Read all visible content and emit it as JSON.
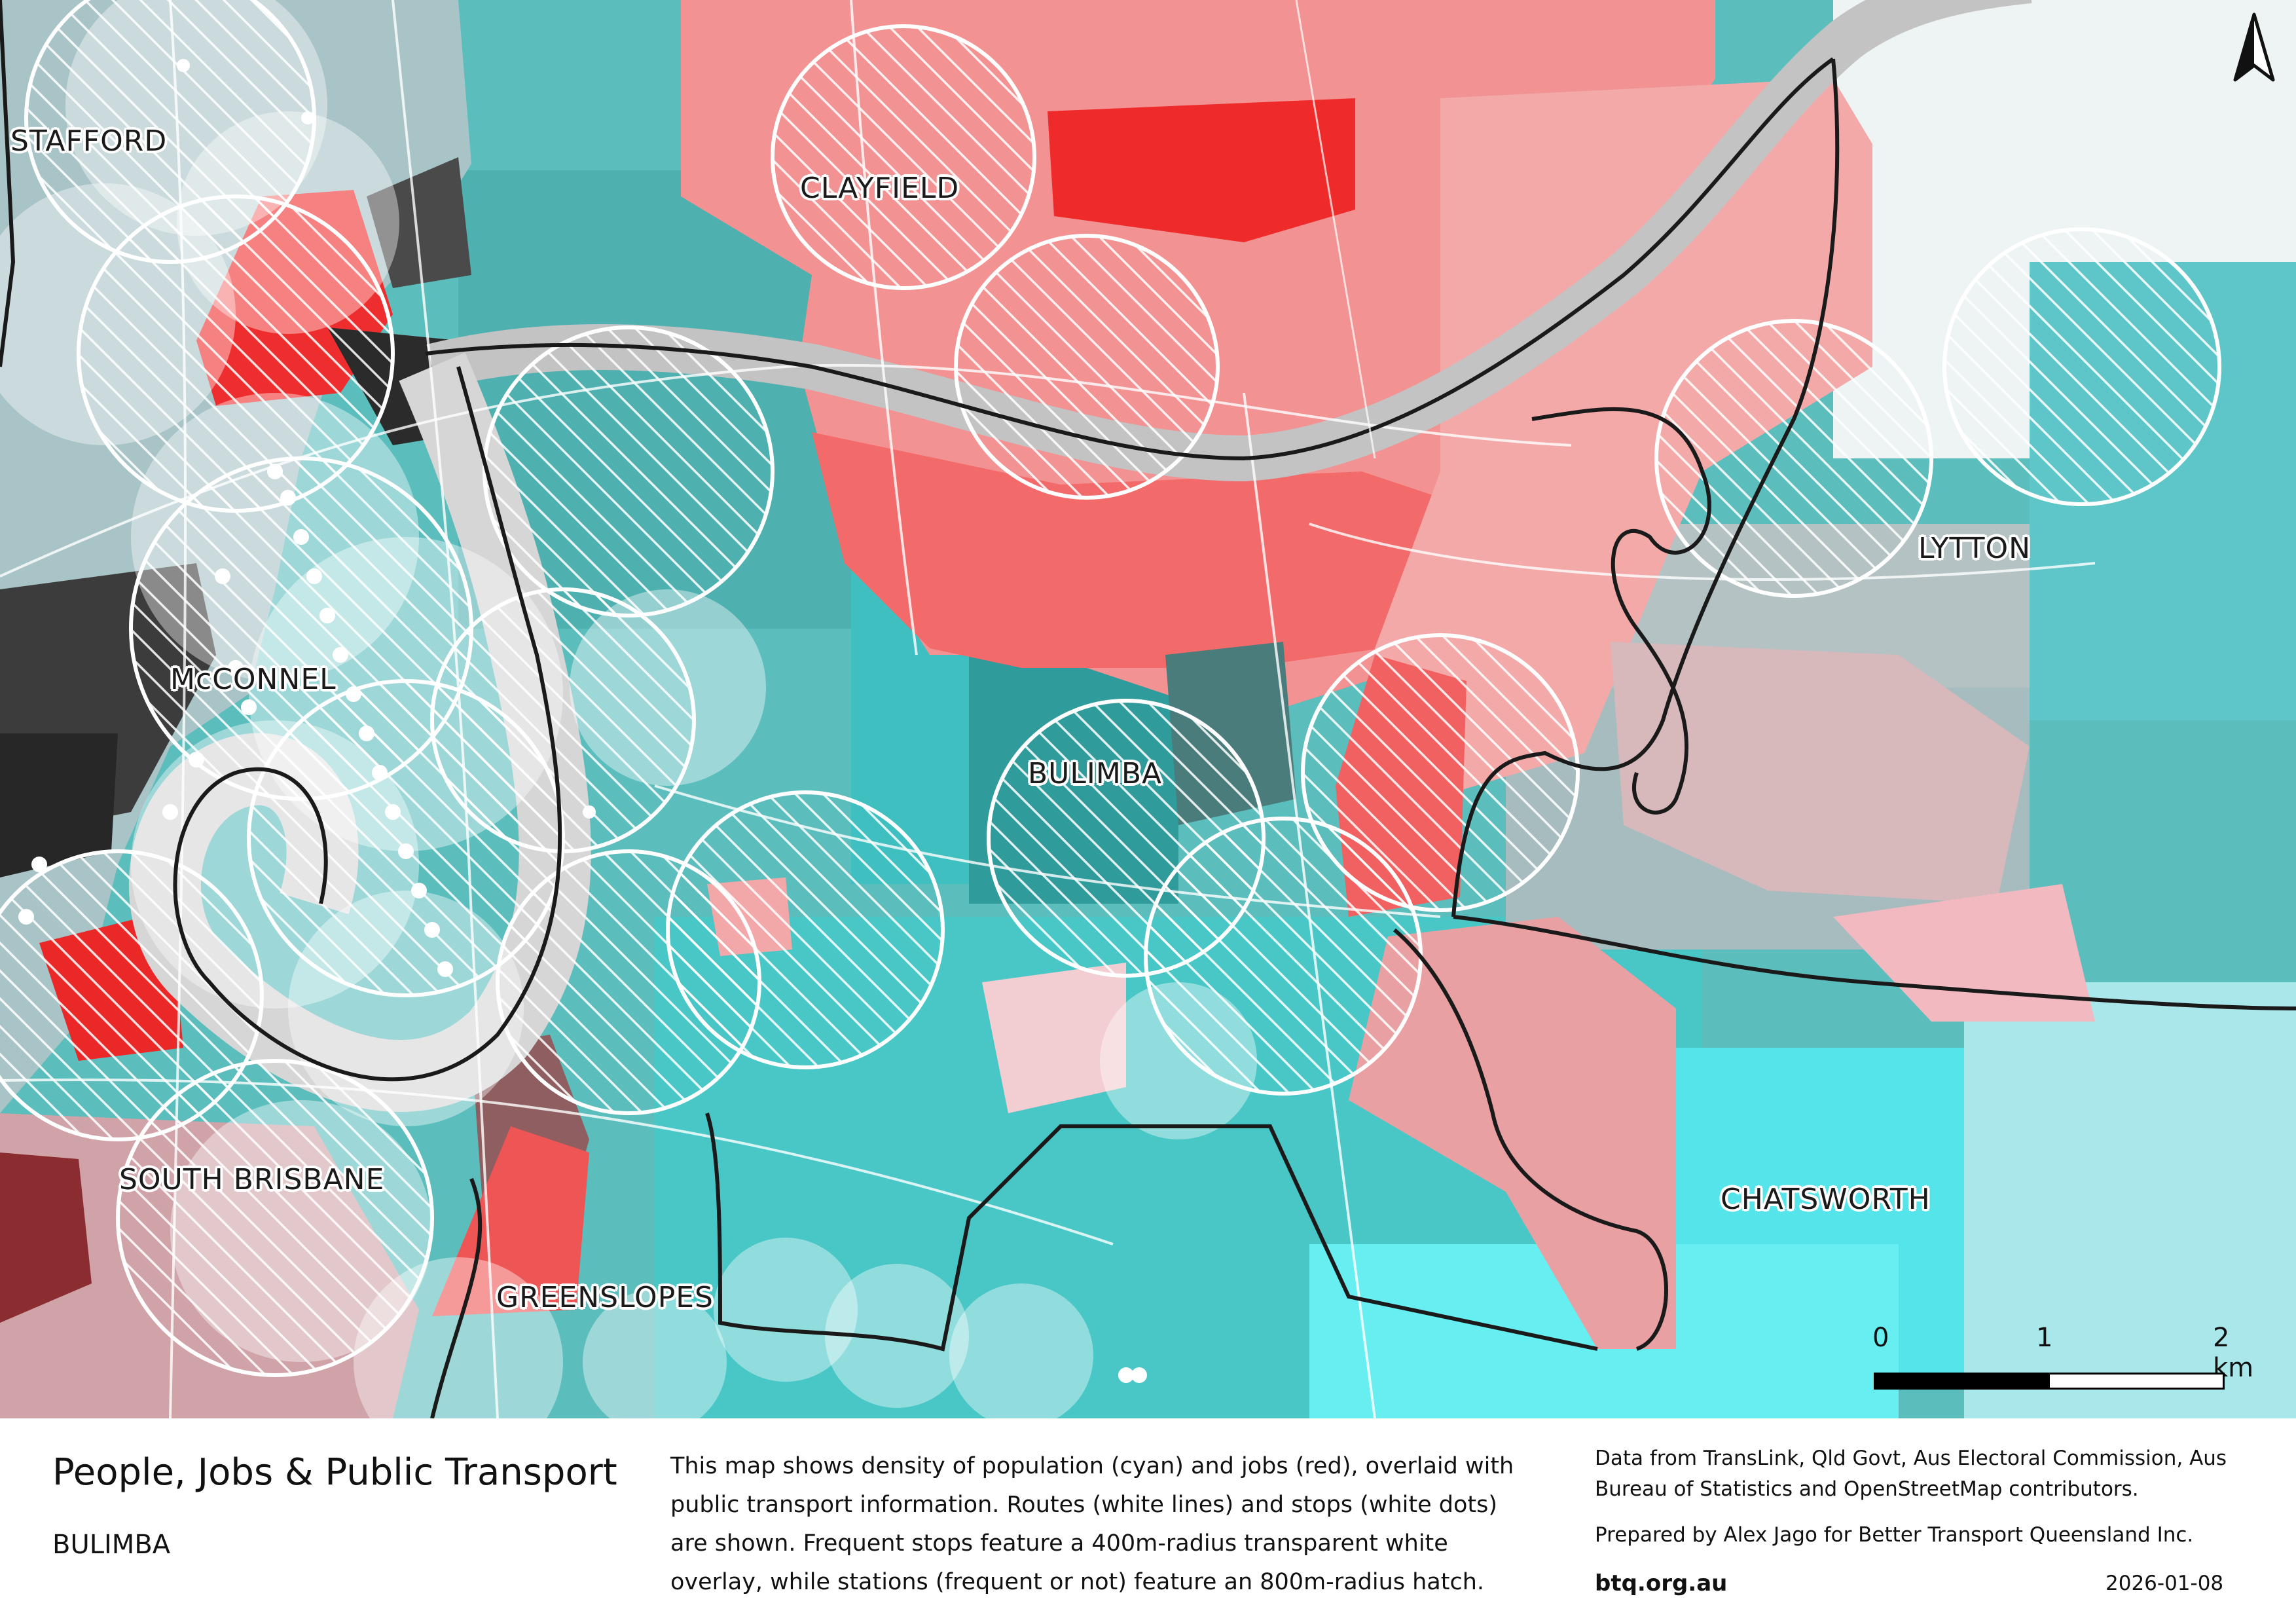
{
  "map": {
    "place_labels": [
      {
        "key": "stafford",
        "text": "STAFFORD"
      },
      {
        "key": "clayfield",
        "text": "CLAYFIELD"
      },
      {
        "key": "lytton",
        "text": "LYTTON"
      },
      {
        "key": "mcconnel",
        "text": "McCONNEL"
      },
      {
        "key": "bulimba",
        "text": "BULIMBA"
      },
      {
        "key": "south_brisbane",
        "text": "SOUTH BRISBANE"
      },
      {
        "key": "chatsworth",
        "text": "CHATSWORTH"
      },
      {
        "key": "greenslopes",
        "text": "GREENSLOPES"
      }
    ],
    "scale_bar": {
      "ticks": [
        "0",
        "1",
        "2 km"
      ]
    },
    "north_arrow": "north-arrow-icon",
    "colors": {
      "population": "#2ec4c4",
      "jobs": "#ff4b4b",
      "mixed": "#3a3a3a",
      "routes": "#ffffff",
      "boundary": "#1a1a1a",
      "river": "#c8c8c8"
    }
  },
  "footer": {
    "title": "People, Jobs & Public Transport",
    "subtitle": "BULIMBA",
    "description": "This map shows density of population (cyan) and jobs (red), overlaid with public transport information. Routes (white lines) and stops (white dots) are shown. Frequent stops feature a 400m-radius transparent white overlay, while stations (frequent or not) feature an 800m-radius hatch.",
    "credits": "Data from TransLink,  Qld Govt,  Aus Electoral Commission, Aus Bureau of Statistics and OpenStreetMap contributors.",
    "prepared_by": "Prepared by Alex Jago for Better Transport Queensland Inc.",
    "website": "btq.org.au",
    "date": "2026-01-08"
  }
}
